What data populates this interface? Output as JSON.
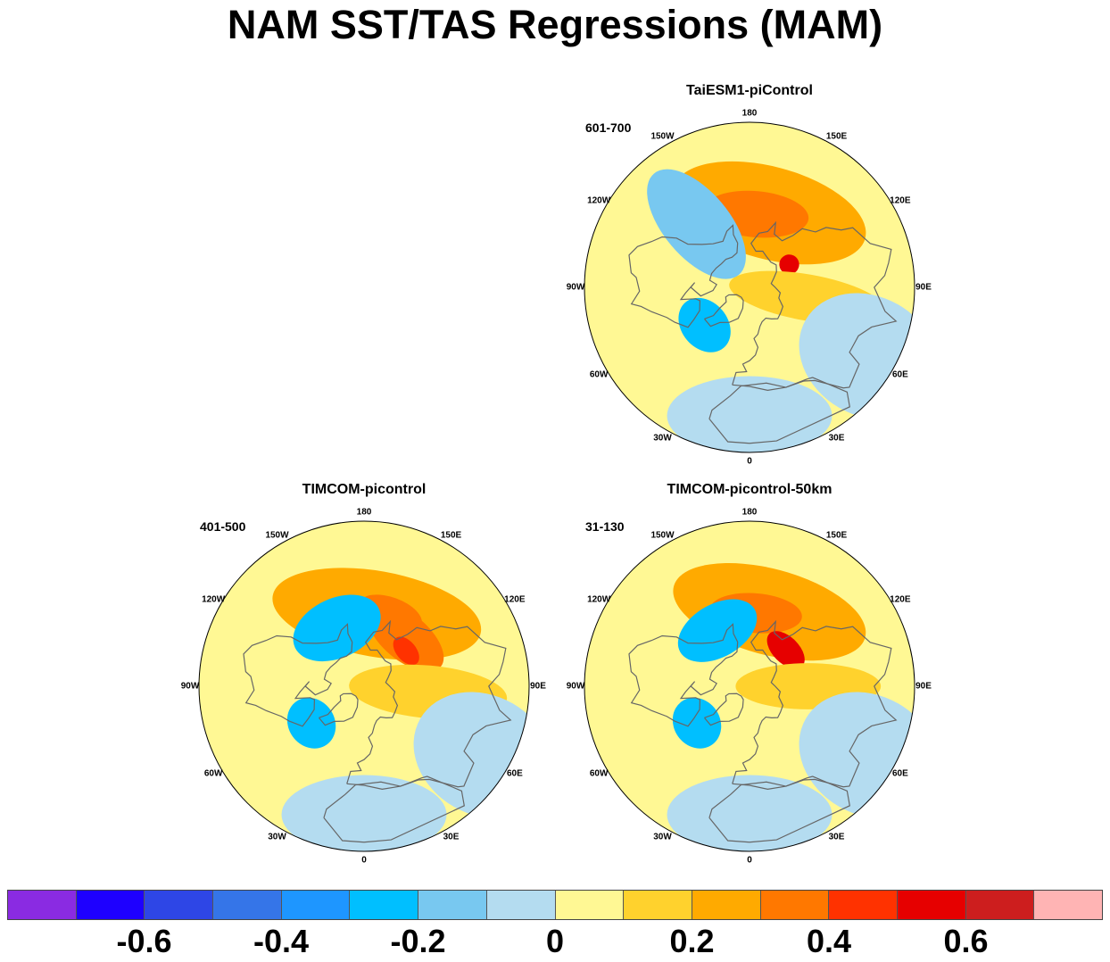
{
  "title": "NAM SST/TAS Regressions (MAM)",
  "panels": [
    {
      "name": "TaiESM1-piControl",
      "period": "601-700",
      "lon_labels": [
        "180",
        "150E",
        "120E",
        "90E",
        "60E",
        "30E",
        "0",
        "30W",
        "60W",
        "90W",
        "120W",
        "150W"
      ],
      "anomalies": [
        {
          "lon": 165,
          "lat": 48,
          "rx": 0.3,
          "ry": 0.14,
          "level": 0.2
        },
        {
          "lon": 175,
          "lat": 50,
          "rx": 0.16,
          "ry": 0.07,
          "level": 0.3
        },
        {
          "lon": 120,
          "lat": 65,
          "rx": 0.03,
          "ry": 0.03,
          "level": 0.55
        },
        {
          "lon": 80,
          "lat": 58,
          "rx": 0.07,
          "ry": 0.24,
          "level": 0.15
        },
        {
          "lon": -140,
          "lat": 45,
          "rx": 0.1,
          "ry": 0.2,
          "level": -0.15
        },
        {
          "lon": -50,
          "lat": 58,
          "rx": 0.09,
          "ry": 0.07,
          "level": -0.25
        },
        {
          "lon": 60,
          "lat": 15,
          "rx": 0.18,
          "ry": 0.22,
          "level": -0.05
        },
        {
          "lon": 0,
          "lat": 20,
          "rx": 0.25,
          "ry": 0.12,
          "level": -0.05
        }
      ]
    },
    {
      "name": "TIMCOM-picontrol",
      "period": "401-500",
      "lon_labels": [
        "180",
        "150E",
        "120E",
        "90E",
        "60E",
        "30E",
        "0",
        "30W",
        "60W",
        "90W",
        "120W",
        "150W"
      ],
      "anomalies": [
        {
          "lon": 170,
          "lat": 50,
          "rx": 0.32,
          "ry": 0.13,
          "level": 0.2
        },
        {
          "lon": 160,
          "lat": 48,
          "rx": 0.1,
          "ry": 0.05,
          "level": 0.3
        },
        {
          "lon": 140,
          "lat": 55,
          "rx": 0.14,
          "ry": 0.07,
          "level": 0.35
        },
        {
          "lon": 130,
          "lat": 60,
          "rx": 0.05,
          "ry": 0.03,
          "level": 0.45
        },
        {
          "lon": 85,
          "lat": 55,
          "rx": 0.08,
          "ry": 0.24,
          "level": 0.15
        },
        {
          "lon": -155,
          "lat": 55,
          "rx": 0.14,
          "ry": 0.09,
          "level": -0.25
        },
        {
          "lon": -55,
          "lat": 55,
          "rx": 0.08,
          "ry": 0.07,
          "level": -0.25
        },
        {
          "lon": 60,
          "lat": 15,
          "rx": 0.18,
          "ry": 0.22,
          "level": -0.05
        },
        {
          "lon": 0,
          "lat": 20,
          "rx": 0.25,
          "ry": 0.12,
          "level": -0.05
        }
      ]
    },
    {
      "name": "TIMCOM-picontrol-50km",
      "period": "31-130",
      "lon_labels": [
        "180",
        "150E",
        "120E",
        "90E",
        "60E",
        "30E",
        "0",
        "30W",
        "60W",
        "90W",
        "120W",
        "150W"
      ],
      "anomalies": [
        {
          "lon": 165,
          "lat": 48,
          "rx": 0.3,
          "ry": 0.13,
          "level": 0.2
        },
        {
          "lon": 175,
          "lat": 50,
          "rx": 0.14,
          "ry": 0.06,
          "level": 0.3
        },
        {
          "lon": 135,
          "lat": 62,
          "rx": 0.07,
          "ry": 0.04,
          "level": 0.5
        },
        {
          "lon": 90,
          "lat": 58,
          "rx": 0.07,
          "ry": 0.22,
          "level": 0.15
        },
        {
          "lon": -150,
          "lat": 55,
          "rx": 0.13,
          "ry": 0.08,
          "level": -0.25
        },
        {
          "lon": -55,
          "lat": 55,
          "rx": 0.08,
          "ry": 0.07,
          "level": -0.25
        },
        {
          "lon": 60,
          "lat": 15,
          "rx": 0.18,
          "ry": 0.22,
          "level": -0.05
        },
        {
          "lon": 0,
          "lat": 20,
          "rx": 0.25,
          "ry": 0.12,
          "level": -0.05
        }
      ]
    }
  ],
  "colorbar": {
    "colors": [
      "#8a2be2",
      "#1e00ff",
      "#2e46e6",
      "#3575e8",
      "#1e96ff",
      "#00bfff",
      "#78c8f0",
      "#b4dcf0",
      "#fff894",
      "#ffd22d",
      "#ffaa00",
      "#ff7800",
      "#ff3200",
      "#e60000",
      "#cd1e1e",
      "#ffb4b4"
    ],
    "labels": [
      "-0.6",
      "-0.4",
      "-0.2",
      "0",
      "0.2",
      "0.4",
      "0.6"
    ],
    "levels": [
      -0.7,
      -0.6,
      -0.5,
      -0.4,
      -0.3,
      -0.2,
      -0.1,
      0,
      0.1,
      0.2,
      0.3,
      0.4,
      0.5,
      0.6,
      0.7
    ]
  }
}
